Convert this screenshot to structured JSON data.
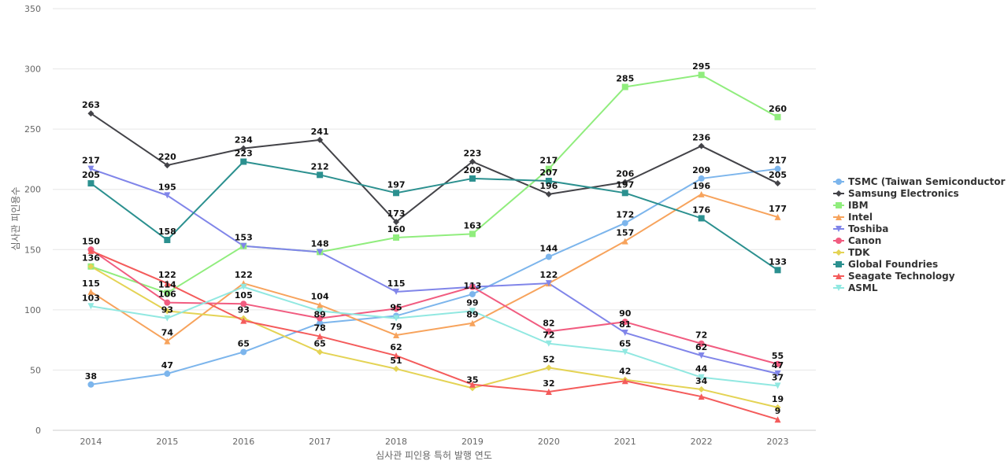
{
  "chart_data": {
    "type": "line",
    "title": "",
    "xlabel": "심사관 피인용 특허 발행 연도",
    "ylabel": "심사관 피인용수",
    "ylim": [
      0,
      350
    ],
    "yticks": [
      0,
      50,
      100,
      150,
      200,
      250,
      300,
      350
    ],
    "grid": true,
    "legend_position": "right",
    "categories": [
      "2014",
      "2015",
      "2016",
      "2017",
      "2018",
      "2019",
      "2020",
      "2021",
      "2022",
      "2023"
    ],
    "series": [
      {
        "name": "TSMC (Taiwan Semiconductor ...",
        "color": "#7cb5ec",
        "marker": "circle",
        "values": [
          38,
          47,
          65,
          89,
          95,
          113,
          144,
          172,
          209,
          217
        ]
      },
      {
        "name": "Samsung Electronics",
        "color": "#434348",
        "marker": "diamond",
        "values": [
          263,
          220,
          234,
          241,
          173,
          223,
          196,
          206,
          236,
          205
        ]
      },
      {
        "name": "IBM",
        "color": "#90ed7d",
        "marker": "square",
        "values": [
          136,
          114,
          153,
          148,
          160,
          163,
          217,
          285,
          295,
          260
        ]
      },
      {
        "name": "Intel",
        "color": "#f7a35c",
        "marker": "triangle",
        "values": [
          115,
          74,
          122,
          104,
          79,
          89,
          122,
          157,
          196,
          177
        ]
      },
      {
        "name": "Toshiba",
        "color": "#8085e9",
        "marker": "triangle-down",
        "values": [
          217,
          195,
          153,
          148,
          115,
          119,
          122,
          81,
          62,
          47
        ]
      },
      {
        "name": "Canon",
        "color": "#f15c80",
        "marker": "circle",
        "values": [
          150,
          106,
          105,
          93,
          101,
          119,
          82,
          90,
          72,
          55
        ]
      },
      {
        "name": "TDK",
        "color": "#e4d354",
        "marker": "diamond",
        "values": [
          136,
          99,
          93,
          65,
          51,
          35,
          52,
          42,
          34,
          19
        ]
      },
      {
        "name": "Global Foundries",
        "color": "#2b908f",
        "marker": "square",
        "values": [
          205,
          158,
          223,
          212,
          197,
          209,
          207,
          197,
          176,
          133
        ]
      },
      {
        "name": "Seagate Technology",
        "color": "#f45b5b",
        "marker": "triangle",
        "values": [
          149,
          122,
          91,
          78,
          62,
          38,
          32,
          41,
          28,
          9
        ]
      },
      {
        "name": "ASML",
        "color": "#91e8e1",
        "marker": "triangle-down",
        "values": [
          103,
          93,
          119,
          99,
          93,
          99,
          72,
          65,
          44,
          37
        ]
      }
    ],
    "data_labels": [
      {
        "x": "2014",
        "text": "263",
        "value": 263
      },
      {
        "x": "2014",
        "text": "217",
        "value": 217
      },
      {
        "x": "2014",
        "text": "205",
        "value": 205
      },
      {
        "x": "2014",
        "text": "150",
        "value": 150
      },
      {
        "x": "2014",
        "text": "136",
        "value": 136
      },
      {
        "x": "2014",
        "text": "115",
        "value": 115
      },
      {
        "x": "2014",
        "text": "103",
        "value": 103
      },
      {
        "x": "2014",
        "text": "38",
        "value": 38
      },
      {
        "x": "2015",
        "text": "220",
        "value": 220
      },
      {
        "x": "2015",
        "text": "195",
        "value": 195
      },
      {
        "x": "2015",
        "text": "158",
        "value": 158
      },
      {
        "x": "2015",
        "text": "122",
        "value": 122
      },
      {
        "x": "2015",
        "text": "114",
        "value": 114
      },
      {
        "x": "2015",
        "text": "106",
        "value": 106
      },
      {
        "x": "2015",
        "text": "93",
        "value": 93
      },
      {
        "x": "2015",
        "text": "74",
        "value": 74
      },
      {
        "x": "2015",
        "text": "47",
        "value": 47
      },
      {
        "x": "2016",
        "text": "234",
        "value": 234
      },
      {
        "x": "2016",
        "text": "223",
        "value": 223
      },
      {
        "x": "2016",
        "text": "153",
        "value": 153
      },
      {
        "x": "2016",
        "text": "122",
        "value": 122
      },
      {
        "x": "2016",
        "text": "105",
        "value": 105
      },
      {
        "x": "2016",
        "text": "93",
        "value": 93
      },
      {
        "x": "2016",
        "text": "65",
        "value": 65
      },
      {
        "x": "2017",
        "text": "241",
        "value": 241
      },
      {
        "x": "2017",
        "text": "212",
        "value": 212
      },
      {
        "x": "2017",
        "text": "148",
        "value": 148
      },
      {
        "x": "2017",
        "text": "104",
        "value": 104
      },
      {
        "x": "2017",
        "text": "89",
        "value": 89
      },
      {
        "x": "2017",
        "text": "78",
        "value": 78
      },
      {
        "x": "2017",
        "text": "65",
        "value": 65
      },
      {
        "x": "2018",
        "text": "197",
        "value": 197
      },
      {
        "x": "2018",
        "text": "173",
        "value": 173
      },
      {
        "x": "2018",
        "text": "160",
        "value": 160
      },
      {
        "x": "2018",
        "text": "115",
        "value": 115
      },
      {
        "x": "2018",
        "text": "95",
        "value": 95
      },
      {
        "x": "2018",
        "text": "79",
        "value": 79
      },
      {
        "x": "2018",
        "text": "62",
        "value": 62
      },
      {
        "x": "2018",
        "text": "51",
        "value": 51
      },
      {
        "x": "2019",
        "text": "223",
        "value": 223
      },
      {
        "x": "2019",
        "text": "209",
        "value": 209
      },
      {
        "x": "2019",
        "text": "163",
        "value": 163
      },
      {
        "x": "2019",
        "text": "113",
        "value": 113
      },
      {
        "x": "2019",
        "text": "99",
        "value": 99
      },
      {
        "x": "2019",
        "text": "89",
        "value": 89
      },
      {
        "x": "2019",
        "text": "35",
        "value": 35
      },
      {
        "x": "2020",
        "text": "217",
        "value": 217
      },
      {
        "x": "2020",
        "text": "207",
        "value": 207
      },
      {
        "x": "2020",
        "text": "196",
        "value": 196
      },
      {
        "x": "2020",
        "text": "144",
        "value": 144
      },
      {
        "x": "2020",
        "text": "122",
        "value": 122
      },
      {
        "x": "2020",
        "text": "82",
        "value": 82
      },
      {
        "x": "2020",
        "text": "72",
        "value": 72
      },
      {
        "x": "2020",
        "text": "52",
        "value": 52
      },
      {
        "x": "2020",
        "text": "32",
        "value": 32
      },
      {
        "x": "2021",
        "text": "285",
        "value": 285
      },
      {
        "x": "2021",
        "text": "206",
        "value": 206
      },
      {
        "x": "2021",
        "text": "197",
        "value": 197
      },
      {
        "x": "2021",
        "text": "172",
        "value": 172
      },
      {
        "x": "2021",
        "text": "157",
        "value": 157
      },
      {
        "x": "2021",
        "text": "90",
        "value": 90
      },
      {
        "x": "2021",
        "text": "81",
        "value": 81
      },
      {
        "x": "2021",
        "text": "65",
        "value": 65
      },
      {
        "x": "2021",
        "text": "42",
        "value": 42
      },
      {
        "x": "2022",
        "text": "295",
        "value": 295
      },
      {
        "x": "2022",
        "text": "236",
        "value": 236
      },
      {
        "x": "2022",
        "text": "209",
        "value": 209
      },
      {
        "x": "2022",
        "text": "196",
        "value": 196
      },
      {
        "x": "2022",
        "text": "176",
        "value": 176
      },
      {
        "x": "2022",
        "text": "72",
        "value": 72
      },
      {
        "x": "2022",
        "text": "62",
        "value": 62
      },
      {
        "x": "2022",
        "text": "44",
        "value": 44
      },
      {
        "x": "2022",
        "text": "34",
        "value": 34
      },
      {
        "x": "2023",
        "text": "260",
        "value": 260
      },
      {
        "x": "2023",
        "text": "217",
        "value": 217
      },
      {
        "x": "2023",
        "text": "205",
        "value": 205
      },
      {
        "x": "2023",
        "text": "177",
        "value": 177
      },
      {
        "x": "2023",
        "text": "133",
        "value": 133
      },
      {
        "x": "2023",
        "text": "55",
        "value": 55
      },
      {
        "x": "2023",
        "text": "47",
        "value": 47
      },
      {
        "x": "2023",
        "text": "37",
        "value": 37
      },
      {
        "x": "2023",
        "text": "19",
        "value": 19
      },
      {
        "x": "2023",
        "text": "9",
        "value": 9
      }
    ]
  }
}
